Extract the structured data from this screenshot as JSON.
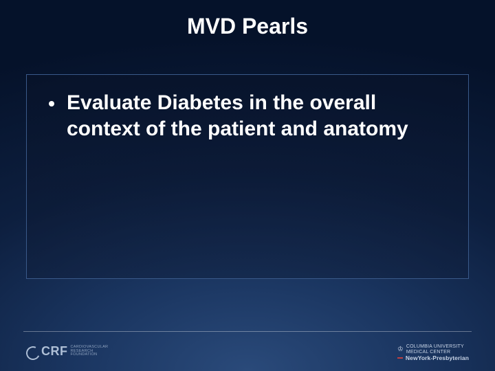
{
  "slide": {
    "title": "MVD Pearls",
    "title_fontsize": 32,
    "title_color": "#ffffff",
    "background_gradient": {
      "type": "radial",
      "stops": [
        "#2a4a7a",
        "#1a3560",
        "#0d1f3f",
        "#05122a"
      ]
    }
  },
  "content": {
    "box_border_color": "#3a5a8a",
    "bullets": [
      {
        "text": "Evaluate Diabetes in the overall context of the patient and anatomy",
        "fontsize": 30,
        "color": "#ffffff",
        "bullet_color": "#ffffff"
      }
    ]
  },
  "footer": {
    "left": {
      "mark": "CRF",
      "sub_line1": "CARDIOVASCULAR",
      "sub_line2": "RESEARCH",
      "sub_line3": "FOUNDATION"
    },
    "right": {
      "cu_line1": "COLUMBIA UNIVERSITY",
      "cu_line2": "MEDICAL CENTER",
      "nyp": "NewYork-Presbyterian"
    },
    "line_color": "rgba(255,255,255,0.35)",
    "text_color": "#aebfd6"
  }
}
